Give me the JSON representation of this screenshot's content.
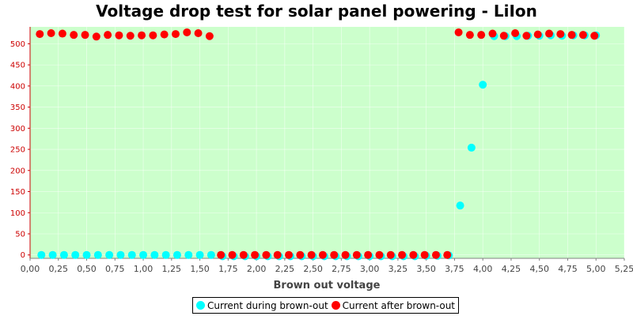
{
  "chart_data": {
    "type": "scatter",
    "title": "Voltage drop test for solar panel powering -  LiIon",
    "xlabel": "Brown out voltage",
    "ylabel": "",
    "xlim": [
      0,
      5.25
    ],
    "ylim": [
      -8,
      540
    ],
    "x_ticks": [
      "0,00",
      "0,25",
      "0,50",
      "0,75",
      "1,00",
      "1,25",
      "1,50",
      "1,75",
      "2,00",
      "2,25",
      "2,50",
      "2,75",
      "3,00",
      "3,25",
      "3,50",
      "3,75",
      "4,00",
      "4,25",
      "4,50",
      "4,75",
      "5,00",
      "5,25"
    ],
    "y_ticks": [
      "0",
      "50",
      "100",
      "150",
      "200",
      "250",
      "300",
      "350",
      "400",
      "450",
      "500"
    ],
    "x_tick_values": [
      0,
      0.25,
      0.5,
      0.75,
      1.0,
      1.25,
      1.5,
      1.75,
      2.0,
      2.25,
      2.5,
      2.75,
      3.0,
      3.25,
      3.5,
      3.75,
      4.0,
      4.25,
      4.5,
      4.75,
      5.0,
      5.25
    ],
    "y_tick_values": [
      0,
      50,
      100,
      150,
      200,
      250,
      300,
      350,
      400,
      450,
      500
    ],
    "plot_background": "#ccffcc",
    "legend_position": "bottom",
    "series": [
      {
        "name": "Current during brown-out",
        "color": "#00ffff",
        "points": [
          [
            0.1,
            0
          ],
          [
            0.2,
            0
          ],
          [
            0.3,
            0
          ],
          [
            0.4,
            0
          ],
          [
            0.5,
            0
          ],
          [
            0.6,
            0
          ],
          [
            0.7,
            0
          ],
          [
            0.8,
            0
          ],
          [
            0.9,
            0
          ],
          [
            1.0,
            0
          ],
          [
            1.1,
            0
          ],
          [
            1.2,
            0
          ],
          [
            1.3,
            0
          ],
          [
            1.4,
            0
          ],
          [
            1.5,
            0
          ],
          [
            1.6,
            0
          ],
          [
            1.7,
            -3
          ],
          [
            1.8,
            -3
          ],
          [
            1.9,
            -3
          ],
          [
            2.0,
            -3
          ],
          [
            2.1,
            -3
          ],
          [
            2.2,
            -3
          ],
          [
            2.3,
            -3
          ],
          [
            2.4,
            -3
          ],
          [
            2.5,
            -3
          ],
          [
            2.6,
            -3
          ],
          [
            2.7,
            -3
          ],
          [
            2.8,
            -3
          ],
          [
            2.9,
            -3
          ],
          [
            3.0,
            -3
          ],
          [
            3.1,
            -3
          ],
          [
            3.2,
            -3
          ],
          [
            3.3,
            -3
          ],
          [
            3.4,
            -3
          ],
          [
            3.5,
            -2
          ],
          [
            3.6,
            -2
          ],
          [
            3.7,
            -1
          ],
          [
            3.8,
            117
          ],
          [
            3.9,
            254
          ],
          [
            4.0,
            403
          ],
          [
            4.1,
            518
          ],
          [
            4.2,
            518
          ],
          [
            4.3,
            518
          ],
          [
            4.4,
            519
          ],
          [
            4.5,
            519
          ],
          [
            4.6,
            520
          ],
          [
            4.7,
            519
          ],
          [
            4.8,
            520
          ],
          [
            4.9,
            520
          ],
          [
            5.0,
            520
          ]
        ]
      },
      {
        "name": "Current after brown-out",
        "color": "#ff0000",
        "points": [
          [
            0.1,
            523
          ],
          [
            0.2,
            525
          ],
          [
            0.3,
            524
          ],
          [
            0.4,
            521
          ],
          [
            0.5,
            521
          ],
          [
            0.6,
            517
          ],
          [
            0.7,
            521
          ],
          [
            0.8,
            520
          ],
          [
            0.9,
            519
          ],
          [
            1.0,
            520
          ],
          [
            1.1,
            520
          ],
          [
            1.2,
            522
          ],
          [
            1.3,
            523
          ],
          [
            1.4,
            527
          ],
          [
            1.5,
            525
          ],
          [
            1.6,
            518
          ],
          [
            1.7,
            0
          ],
          [
            1.8,
            0
          ],
          [
            1.9,
            0
          ],
          [
            2.0,
            0
          ],
          [
            2.1,
            0
          ],
          [
            2.2,
            0
          ],
          [
            2.3,
            0
          ],
          [
            2.4,
            0
          ],
          [
            2.5,
            0
          ],
          [
            2.6,
            0
          ],
          [
            2.7,
            0
          ],
          [
            2.8,
            0
          ],
          [
            2.9,
            0
          ],
          [
            3.0,
            0
          ],
          [
            3.1,
            0
          ],
          [
            3.2,
            0
          ],
          [
            3.3,
            0
          ],
          [
            3.4,
            0
          ],
          [
            3.5,
            0
          ],
          [
            3.6,
            0
          ],
          [
            3.7,
            0
          ],
          [
            3.8,
            527
          ],
          [
            3.9,
            521
          ],
          [
            4.0,
            521
          ],
          [
            4.1,
            524
          ],
          [
            4.2,
            519
          ],
          [
            4.3,
            525
          ],
          [
            4.4,
            519
          ],
          [
            4.5,
            522
          ],
          [
            4.6,
            524
          ],
          [
            4.7,
            523
          ],
          [
            4.8,
            521
          ],
          [
            4.9,
            521
          ],
          [
            5.0,
            519
          ]
        ]
      }
    ]
  }
}
